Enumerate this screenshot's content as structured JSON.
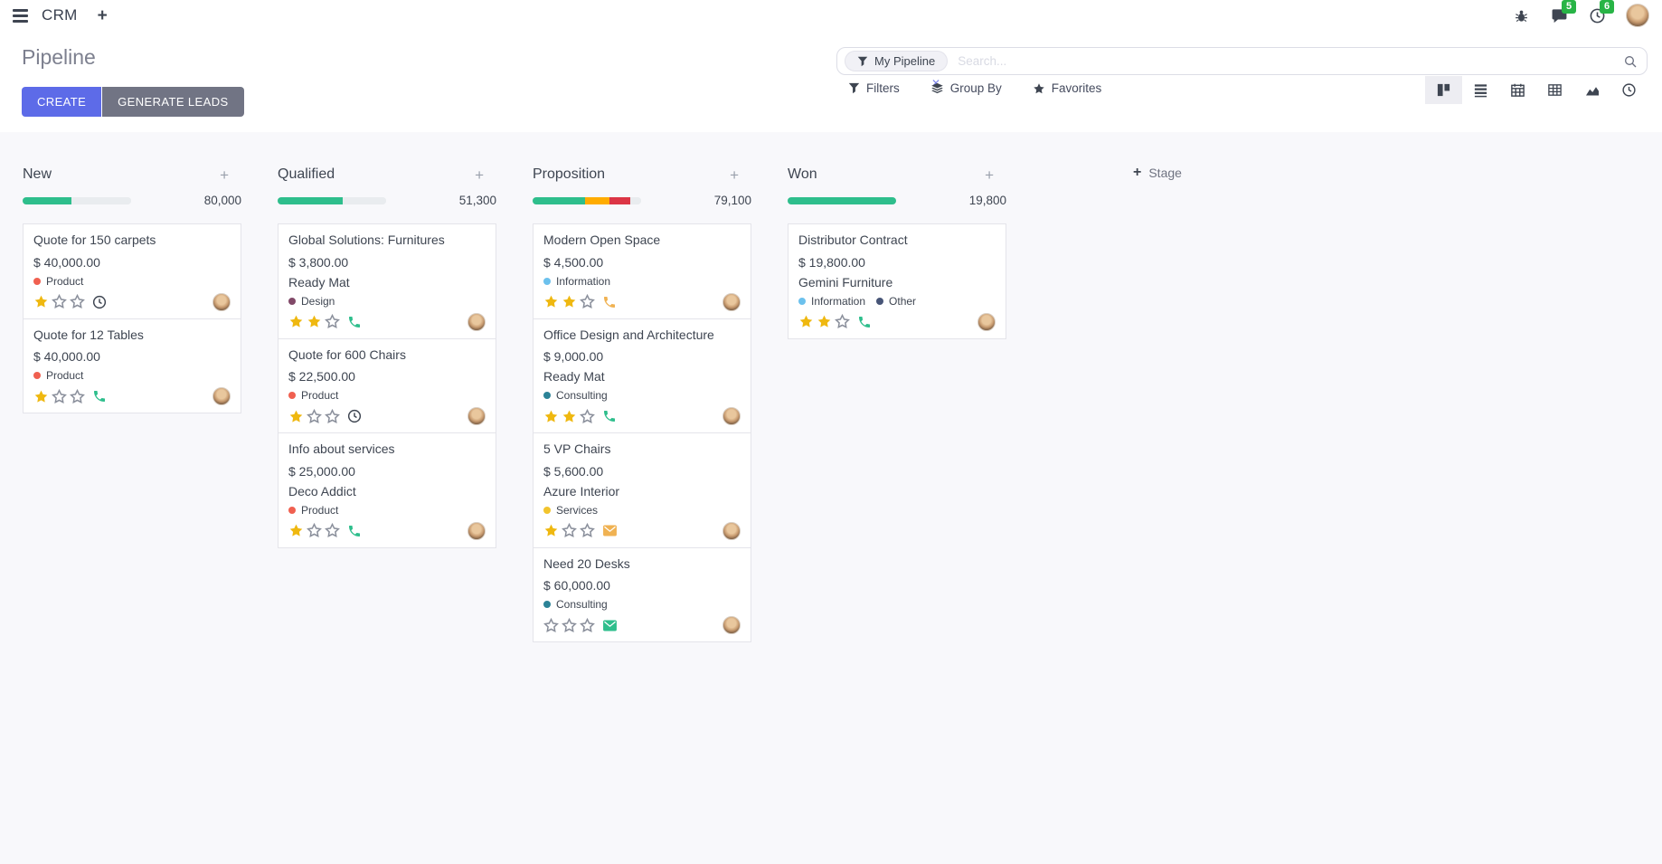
{
  "navbar": {
    "app_name": "CRM",
    "messages_badge": "5",
    "activities_badge": "6"
  },
  "control_panel": {
    "title": "Pipeline",
    "create_label": "CREATE",
    "generate_leads_label": "GENERATE LEADS",
    "search": {
      "facet_label": "My Pipeline",
      "placeholder": "Search...",
      "remove_facet_glyph": "✕"
    },
    "filters_label": "Filters",
    "group_by_label": "Group By",
    "favorites_label": "Favorites",
    "views": [
      "kanban",
      "list",
      "calendar",
      "pivot",
      "graph",
      "activity"
    ],
    "active_view": "kanban"
  },
  "colors": {
    "primary": "#5D6BE8",
    "secondary": "#717484",
    "success": "#2EBE8C",
    "warning": "#FFAC00",
    "danger": "#DC3545",
    "star": "#EFB810",
    "badge": "#28B446",
    "text": "#3E4551",
    "board_bg": "#F8F8FB"
  },
  "board": {
    "add_column_label": "Stage",
    "columns": [
      {
        "name": "New",
        "amount": "80,000",
        "progress": [
          {
            "color": "#2EBE8C",
            "pct": 45
          },
          {
            "color": "#E9ECEF",
            "pct": 55
          }
        ],
        "cards": [
          {
            "title": "Quote for 150 carpets",
            "amount": "$ 40,000.00",
            "tags": [
              {
                "label": "Product",
                "color": "#F06050"
              }
            ],
            "stars": 1,
            "activity": {
              "icon": "clock",
              "color": "#3E4551"
            }
          },
          {
            "title": "Quote for 12 Tables",
            "amount": "$ 40,000.00",
            "tags": [
              {
                "label": "Product",
                "color": "#F06050"
              }
            ],
            "stars": 1,
            "activity": {
              "icon": "phone",
              "color": "#2EBE8C"
            }
          }
        ]
      },
      {
        "name": "Qualified",
        "amount": "51,300",
        "progress": [
          {
            "color": "#2EBE8C",
            "pct": 60
          },
          {
            "color": "#E9ECEF",
            "pct": 40
          }
        ],
        "cards": [
          {
            "title": "Global Solutions: Furnitures",
            "amount": "$ 3,800.00",
            "partner": "Ready Mat",
            "tags": [
              {
                "label": "Design",
                "color": "#814968"
              }
            ],
            "stars": 2,
            "activity": {
              "icon": "phone",
              "color": "#2EBE8C"
            }
          },
          {
            "title": "Quote for 600 Chairs",
            "amount": "$ 22,500.00",
            "tags": [
              {
                "label": "Product",
                "color": "#F06050"
              }
            ],
            "stars": 1,
            "activity": {
              "icon": "clock",
              "color": "#3E4551"
            }
          },
          {
            "title": "Info about services",
            "amount": "$ 25,000.00",
            "partner": "Deco Addict",
            "tags": [
              {
                "label": "Product",
                "color": "#F06050"
              }
            ],
            "stars": 1,
            "activity": {
              "icon": "phone",
              "color": "#2EBE8C"
            }
          }
        ]
      },
      {
        "name": "Proposition",
        "amount": "79,100",
        "progress": [
          {
            "color": "#2EBE8C",
            "pct": 48
          },
          {
            "color": "#FFAC00",
            "pct": 23
          },
          {
            "color": "#DC3545",
            "pct": 19
          },
          {
            "color": "#E9ECEF",
            "pct": 10
          }
        ],
        "cards": [
          {
            "title": "Modern Open Space",
            "amount": "$ 4,500.00",
            "tags": [
              {
                "label": "Information",
                "color": "#6CC1ED"
              }
            ],
            "stars": 2,
            "activity": {
              "icon": "phone",
              "color": "#F0B252"
            }
          },
          {
            "title": "Office Design and Architecture",
            "amount": "$ 9,000.00",
            "partner": "Ready Mat",
            "tags": [
              {
                "label": "Consulting",
                "color": "#2C8397"
              }
            ],
            "stars": 2,
            "activity": {
              "icon": "phone",
              "color": "#2EBE8C"
            }
          },
          {
            "title": "5 VP Chairs",
            "amount": "$ 5,600.00",
            "partner": "Azure Interior",
            "tags": [
              {
                "label": "Services",
                "color": "#F2C42D"
              }
            ],
            "stars": 1,
            "activity": {
              "icon": "envelope",
              "color": "#F0B252"
            }
          },
          {
            "title": "Need 20 Desks",
            "amount": "$ 60,000.00",
            "tags": [
              {
                "label": "Consulting",
                "color": "#2C8397"
              }
            ],
            "stars": 0,
            "activity": {
              "icon": "envelope",
              "color": "#2EBE8C"
            }
          }
        ]
      },
      {
        "name": "Won",
        "amount": "19,800",
        "progress": [
          {
            "color": "#2EBE8C",
            "pct": 100
          }
        ],
        "cards": [
          {
            "title": "Distributor Contract",
            "amount": "$ 19,800.00",
            "partner": "Gemini Furniture",
            "tags": [
              {
                "label": "Information",
                "color": "#6CC1ED"
              },
              {
                "label": "Other",
                "color": "#475577"
              }
            ],
            "stars": 2,
            "activity": {
              "icon": "phone",
              "color": "#2EBE8C"
            }
          }
        ]
      }
    ]
  }
}
